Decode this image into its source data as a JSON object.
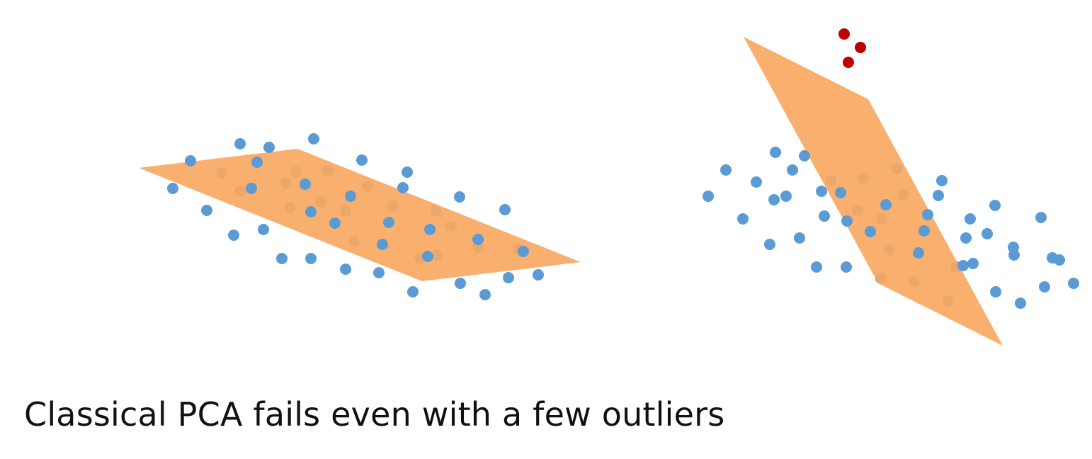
{
  "caption": "Classical PCA fails even with a few outliers",
  "colors": {
    "inlier_point": "#5b9bd5",
    "outlier_point": "#c00000",
    "fitted_plane": "#f9a862",
    "background": "#ffffff"
  },
  "panels": [
    {
      "id": "left",
      "scenario": "no-outliers",
      "inlier_count": 60,
      "outlier_count": 0
    },
    {
      "id": "right",
      "scenario": "with-outliers",
      "inlier_count": 57,
      "outlier_count": 3
    }
  ]
}
